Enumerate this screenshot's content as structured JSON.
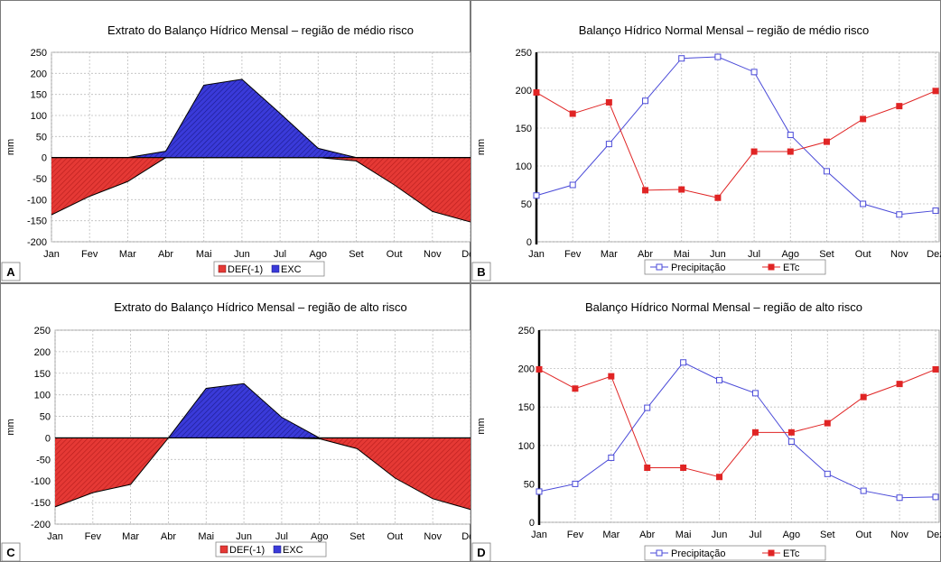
{
  "colors": {
    "def_fill": "#e53935",
    "exc_fill": "#3a3ad9",
    "precip_line": "#4a4ad8",
    "etc_line": "#e02424",
    "grid": "#bdbdbd"
  },
  "chart_data": [
    {
      "panel": "A",
      "type": "area",
      "title": "Extrato do Balanço Hídrico Mensal – região de médio risco",
      "ylabel": "mm",
      "ylim": [
        -200,
        250
      ],
      "yticks": [
        -200,
        -150,
        -100,
        -50,
        0,
        50,
        100,
        150,
        200,
        250
      ],
      "categories": [
        "Jan",
        "Fev",
        "Mar",
        "Abr",
        "Mai",
        "Jun",
        "Jul",
        "Ago",
        "Set",
        "Out",
        "Nov",
        "Dez"
      ],
      "series": [
        {
          "name": "DEF(-1)",
          "values": [
            -136,
            -92,
            -57,
            0,
            0,
            0,
            0,
            0,
            -8,
            -65,
            -128,
            -153
          ]
        },
        {
          "name": "EXC",
          "values": [
            0,
            0,
            0,
            15,
            172,
            186,
            105,
            22,
            0,
            0,
            0,
            0
          ]
        }
      ],
      "legend": "bottom"
    },
    {
      "panel": "B",
      "type": "line",
      "title": "Balanço Hídrico Normal Mensal – região de médio risco",
      "ylabel": "mm",
      "ylim": [
        0,
        250
      ],
      "yticks": [
        0,
        50,
        100,
        150,
        200,
        250
      ],
      "categories": [
        "Jan",
        "Fev",
        "Mar",
        "Abr",
        "Mai",
        "Jun",
        "Jul",
        "Ago",
        "Set",
        "Out",
        "Nov",
        "Dez"
      ],
      "series": [
        {
          "name": "Precipitação",
          "values": [
            61,
            75,
            129,
            186,
            242,
            244,
            224,
            141,
            93,
            50,
            36,
            41
          ]
        },
        {
          "name": "ETc",
          "values": [
            197,
            169,
            184,
            68,
            69,
            58,
            119,
            119,
            132,
            162,
            179,
            199
          ]
        }
      ],
      "legend": "bottom"
    },
    {
      "panel": "C",
      "type": "area",
      "title": "Extrato do Balanço Hídrico Mensal – região de alto risco",
      "ylabel": "mm",
      "ylim": [
        -200,
        250
      ],
      "yticks": [
        -200,
        -150,
        -100,
        -50,
        0,
        50,
        100,
        150,
        200,
        250
      ],
      "categories": [
        "Jan",
        "Fev",
        "Mar",
        "Abr",
        "Mai",
        "Jun",
        "Jul",
        "Ago",
        "Set",
        "Out",
        "Nov",
        "Dez"
      ],
      "series": [
        {
          "name": "DEF(-1)",
          "values": [
            -160,
            -127,
            -108,
            0,
            0,
            0,
            0,
            -2,
            -25,
            -93,
            -141,
            -166
          ]
        },
        {
          "name": "EXC",
          "values": [
            0,
            0,
            0,
            0,
            115,
            126,
            48,
            0,
            0,
            0,
            0,
            0
          ]
        }
      ],
      "legend": "bottom"
    },
    {
      "panel": "D",
      "type": "line",
      "title": "Balanço Hídrico Normal Mensal – região de alto risco",
      "ylabel": "mm",
      "ylim": [
        0,
        250
      ],
      "yticks": [
        0,
        50,
        100,
        150,
        200,
        250
      ],
      "categories": [
        "Jan",
        "Fev",
        "Mar",
        "Abr",
        "Mai",
        "Jun",
        "Jul",
        "Ago",
        "Set",
        "Out",
        "Nov",
        "Dez"
      ],
      "series": [
        {
          "name": "Precipitação",
          "values": [
            40,
            50,
            84,
            149,
            208,
            185,
            168,
            105,
            63,
            41,
            32,
            33
          ]
        },
        {
          "name": "ETc",
          "values": [
            199,
            174,
            190,
            71,
            71,
            59,
            117,
            117,
            129,
            163,
            180,
            199
          ]
        }
      ],
      "legend": "bottom"
    }
  ]
}
